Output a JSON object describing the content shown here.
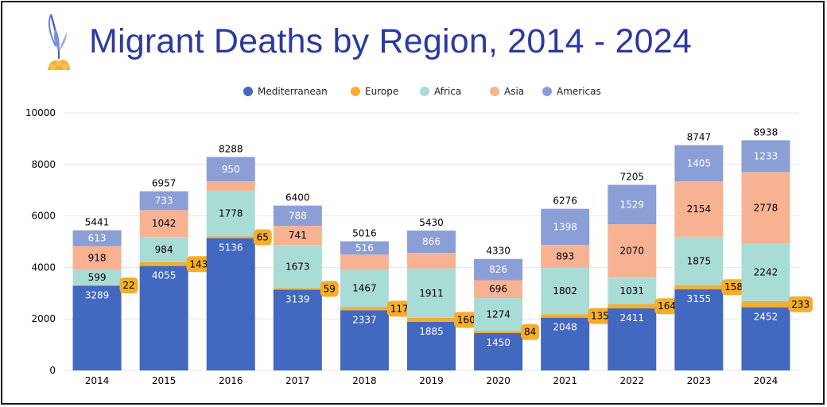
{
  "header": {
    "title": "Migrant Deaths by Region, 2014 - 2024",
    "logo_icon": "flower-icon"
  },
  "colors": {
    "Mediterranean": "#4268bf",
    "Europe": "#f5ae2c",
    "Africa": "#aadcd6",
    "Asia": "#f7b293",
    "Americas": "#8b9fd6",
    "tag_fill": "#f5ae2c",
    "title": "#2b3aa0"
  },
  "chart_data": {
    "type": "bar",
    "stacked": true,
    "title": "Migrant Deaths by Region, 2014 - 2024",
    "xlabel": "",
    "ylabel": "",
    "ylim": [
      0,
      10000
    ],
    "yticks": [
      0,
      2000,
      4000,
      6000,
      8000,
      10000
    ],
    "grid": true,
    "legend_position": "top",
    "categories": [
      "2014",
      "2015",
      "2016",
      "2017",
      "2018",
      "2019",
      "2020",
      "2021",
      "2022",
      "2023",
      "2024"
    ],
    "series": [
      {
        "name": "Mediterranean",
        "values": [
          3289,
          4055,
          5136,
          3139,
          2337,
          1885,
          1450,
          2048,
          2411,
          3155,
          2452
        ]
      },
      {
        "name": "Europe",
        "values": [
          22,
          143,
          65,
          59,
          117,
          160,
          84,
          135,
          164,
          158,
          233
        ]
      },
      {
        "name": "Africa",
        "values": [
          599,
          984,
          1778,
          1673,
          1467,
          1911,
          1274,
          1802,
          1031,
          1875,
          2242
        ]
      },
      {
        "name": "Asia",
        "values": [
          918,
          1042,
          359,
          741,
          579,
          608,
          696,
          893,
          2070,
          2154,
          2778
        ]
      },
      {
        "name": "Americas",
        "values": [
          613,
          733,
          950,
          788,
          516,
          866,
          826,
          1398,
          1529,
          1405,
          1233
        ]
      }
    ],
    "segment_labels": {
      "Asia": [
        918,
        1042,
        null,
        741,
        null,
        null,
        696,
        893,
        2070,
        2154,
        2778
      ]
    },
    "totals": [
      5441,
      6957,
      8288,
      6400,
      5016,
      5430,
      4330,
      6276,
      7205,
      8747,
      8938
    ]
  }
}
